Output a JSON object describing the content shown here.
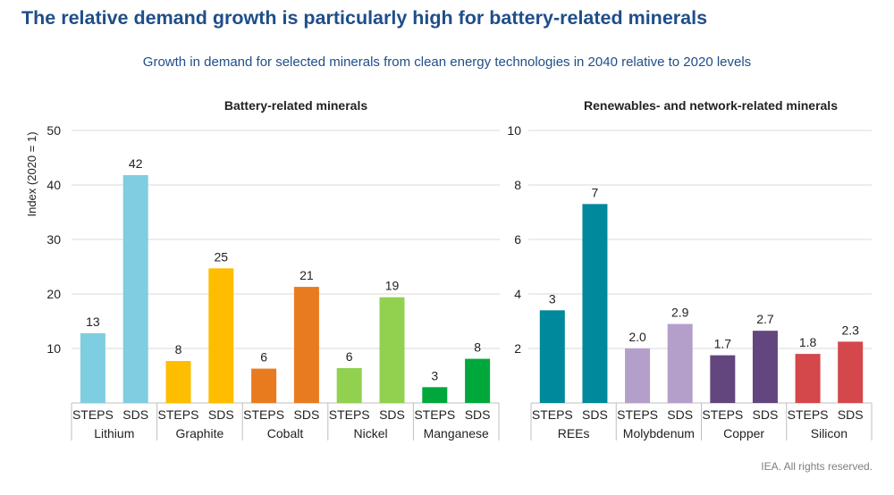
{
  "title": "The relative demand growth is particularly high for battery-related minerals",
  "subtitle": "Growth in demand for selected minerals from clean energy technologies in 2040 relative to 2020 levels",
  "footer": "IEA. All rights reserved.",
  "chart_data": [
    {
      "type": "bar",
      "title": "Battery-related minerals",
      "ylabel": "Index (2020 = 1)",
      "ylim": [
        0,
        50
      ],
      "yticks": [
        "10",
        "20",
        "30",
        "40",
        "50"
      ],
      "grid": true,
      "scenarios": [
        "STEPS",
        "SDS"
      ],
      "categories": [
        {
          "name": "Lithium",
          "color": "#7fcde0",
          "values": [
            12.8,
            41.8
          ],
          "labels": [
            "13",
            "42"
          ]
        },
        {
          "name": "Graphite",
          "color": "#ffbd00",
          "values": [
            7.7,
            24.7
          ],
          "labels": [
            "8",
            "25"
          ]
        },
        {
          "name": "Cobalt",
          "color": "#e97b1f",
          "values": [
            6.3,
            21.3
          ],
          "labels": [
            "6",
            "21"
          ]
        },
        {
          "name": "Nickel",
          "color": "#92d050",
          "values": [
            6.4,
            19.4
          ],
          "labels": [
            "6",
            "19"
          ]
        },
        {
          "name": "Manganese",
          "color": "#00a83c",
          "values": [
            2.9,
            8.1
          ],
          "labels": [
            "3",
            "8"
          ]
        }
      ]
    },
    {
      "type": "bar",
      "title": "Renewables- and network-related minerals",
      "ylabel": "",
      "ylim": [
        0,
        10
      ],
      "yticks": [
        "2",
        "4",
        "6",
        "8",
        "10"
      ],
      "grid": true,
      "scenarios": [
        "STEPS",
        "SDS"
      ],
      "categories": [
        {
          "name": "REEs",
          "color": "#00889c",
          "values": [
            3.4,
            7.3
          ],
          "labels": [
            "3",
            "7"
          ]
        },
        {
          "name": "Molybdenum",
          "color": "#b49fca",
          "values": [
            2.0,
            2.9
          ],
          "labels": [
            "2.0",
            "2.9"
          ]
        },
        {
          "name": "Copper",
          "color": "#62467d",
          "values": [
            1.75,
            2.65
          ],
          "labels": [
            "1.7",
            "2.7"
          ]
        },
        {
          "name": "Silicon",
          "color": "#d4474a",
          "values": [
            1.8,
            2.25
          ],
          "labels": [
            "1.8",
            "2.3"
          ]
        }
      ]
    }
  ]
}
